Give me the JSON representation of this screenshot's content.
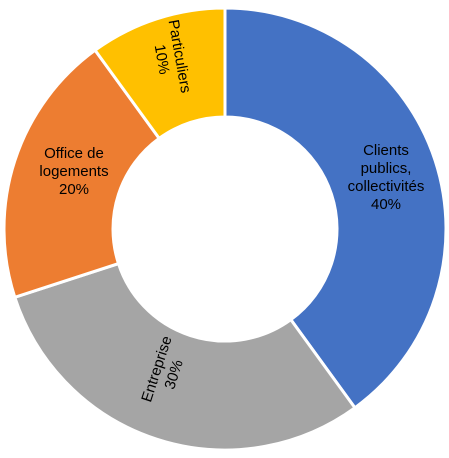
{
  "chart_data": {
    "type": "donut",
    "categories": [
      "Clients publics, collectivités",
      "Entreprise",
      "Office de logements",
      "Particuliers"
    ],
    "values": [
      40,
      30,
      20,
      10
    ],
    "value_labels": [
      "40%",
      "30%",
      "20%",
      "10%"
    ],
    "colors": [
      "#4472c4",
      "#a5a5a5",
      "#ed7d31",
      "#ffc000"
    ]
  }
}
